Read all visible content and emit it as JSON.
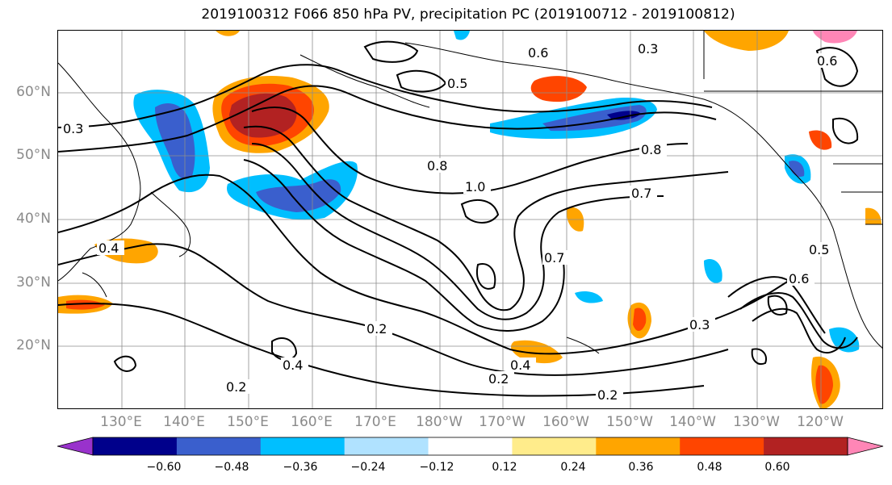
{
  "title": "2019100312 F066 850 hPa PV, precipitation PC (2019100712 - 2019100812)",
  "lat_labels": [
    "60°N",
    "50°N",
    "40°N",
    "30°N",
    "20°N"
  ],
  "lon_labels": [
    "130°E",
    "140°E",
    "150°E",
    "160°E",
    "170°E",
    "180°W",
    "170°W",
    "160°W",
    "150°W",
    "140°W",
    "130°W",
    "120°W"
  ],
  "contour_labels": [
    "0.3",
    "0.4",
    "0.5",
    "0.6",
    "0.7",
    "0.8",
    "1.0",
    "0.2",
    "0.2",
    "0.3",
    "0.4",
    "0.5",
    "0.6",
    "0.7",
    "0.8",
    "0.3",
    "0.6",
    "0.2",
    "0.4",
    "0.2"
  ],
  "colorbar": {
    "ticks": [
      "−0.60",
      "−0.48",
      "−0.36",
      "−0.24",
      "−0.12",
      "0.12",
      "0.24",
      "0.36",
      "0.48",
      "0.60"
    ],
    "colors": [
      "#9932cc",
      "#00008b",
      "#3a5fcd",
      "#00bfff",
      "#b0e2ff",
      "#ffffff",
      "#ffec8b",
      "#ffa500",
      "#ff4500",
      "#b22222",
      "#ff86b6"
    ]
  },
  "legend": {
    "units": ""
  }
}
